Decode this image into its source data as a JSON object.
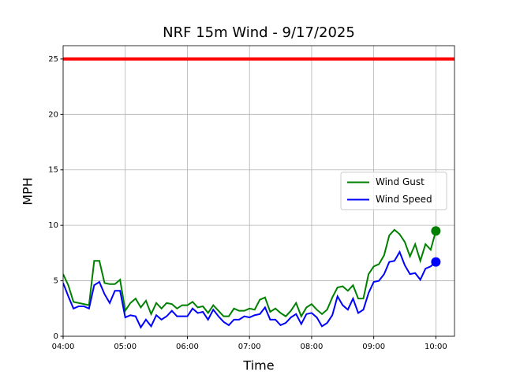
{
  "chart_data": {
    "type": "line",
    "title": "NRF 15m Wind - 9/17/2025",
    "x_label": "Time",
    "y_label": "MPH",
    "x": [
      "04:00",
      "04:05",
      "04:10",
      "04:15",
      "04:20",
      "04:25",
      "04:30",
      "04:35",
      "04:40",
      "04:45",
      "04:50",
      "04:55",
      "05:00",
      "05:05",
      "05:10",
      "05:15",
      "05:20",
      "05:25",
      "05:30",
      "05:35",
      "05:40",
      "05:45",
      "05:50",
      "05:55",
      "06:00",
      "06:05",
      "06:10",
      "06:15",
      "06:20",
      "06:25",
      "06:30",
      "06:35",
      "06:40",
      "06:45",
      "06:50",
      "06:55",
      "07:00",
      "07:05",
      "07:10",
      "07:15",
      "07:20",
      "07:25",
      "07:30",
      "07:35",
      "07:40",
      "07:45",
      "07:50",
      "07:55",
      "08:00",
      "08:05",
      "08:10",
      "08:15",
      "08:20",
      "08:25",
      "08:30",
      "08:35",
      "08:40",
      "08:45",
      "08:50",
      "08:55",
      "09:00",
      "09:05",
      "09:10",
      "09:15",
      "09:20",
      "09:25",
      "09:30",
      "09:35",
      "09:40",
      "09:45",
      "09:50",
      "09:55",
      "10:00"
    ],
    "series": [
      {
        "name": "Wind Gust",
        "color": "#008000",
        "values": [
          5.6,
          4.6,
          3.1,
          3.0,
          2.9,
          2.8,
          6.8,
          6.8,
          4.8,
          4.7,
          4.7,
          5.1,
          2.3,
          3.0,
          3.4,
          2.6,
          3.2,
          2.0,
          3.0,
          2.5,
          3.0,
          2.9,
          2.5,
          2.8,
          2.8,
          3.1,
          2.6,
          2.7,
          2.1,
          2.8,
          2.3,
          1.8,
          1.8,
          2.5,
          2.3,
          2.3,
          2.5,
          2.4,
          3.3,
          3.5,
          2.2,
          2.5,
          2.1,
          1.8,
          2.3,
          3.0,
          1.8,
          2.6,
          2.9,
          2.4,
          2.0,
          2.4,
          3.5,
          4.4,
          4.5,
          4.1,
          4.6,
          3.4,
          3.4,
          5.6,
          6.3,
          6.5,
          7.3,
          9.1,
          9.6,
          9.2,
          8.5,
          7.2,
          8.3,
          6.8,
          8.3,
          7.8,
          9.5
        ]
      },
      {
        "name": "Wind Speed",
        "color": "#0000ff",
        "values": [
          4.8,
          3.6,
          2.5,
          2.7,
          2.7,
          2.5,
          4.6,
          4.9,
          3.8,
          3.0,
          4.1,
          4.1,
          1.7,
          1.9,
          1.8,
          0.8,
          1.5,
          0.9,
          1.9,
          1.5,
          1.8,
          2.3,
          1.8,
          1.8,
          1.8,
          2.5,
          2.1,
          2.2,
          1.5,
          2.4,
          1.8,
          1.3,
          1.0,
          1.5,
          1.5,
          1.8,
          1.7,
          1.9,
          2.0,
          2.6,
          1.5,
          1.5,
          1.0,
          1.2,
          1.7,
          2.0,
          1.1,
          2.0,
          2.1,
          1.7,
          0.9,
          1.2,
          1.9,
          3.6,
          2.8,
          2.4,
          3.4,
          2.1,
          2.4,
          3.9,
          4.9,
          5.0,
          5.6,
          6.7,
          6.8,
          7.6,
          6.4,
          5.6,
          5.7,
          5.1,
          6.1,
          6.3,
          6.7
        ]
      }
    ],
    "hlines": [
      {
        "value": 25,
        "color": "#ff0000"
      }
    ],
    "xlim": [
      "04:00",
      "10:18"
    ],
    "xticks": [
      "04:00",
      "05:00",
      "06:00",
      "07:00",
      "08:00",
      "09:00",
      "10:00"
    ],
    "ylim": [
      0,
      26.2
    ],
    "yticks": [
      0,
      5,
      10,
      15,
      20,
      25
    ],
    "grid": true,
    "legend": "center right",
    "end_markers": true
  }
}
